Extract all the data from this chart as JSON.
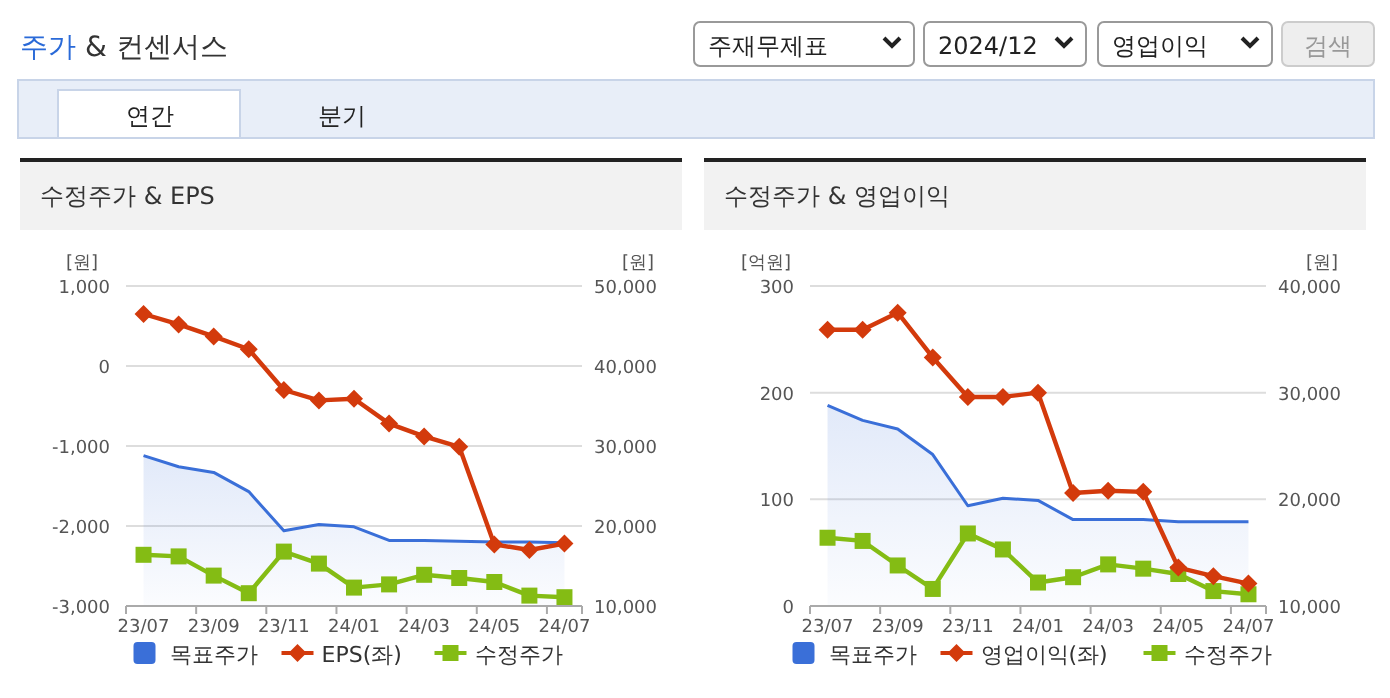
{
  "chart_data": [
    {
      "type": "other",
      "title": "주가 & 컨센서스",
      "annotations": [
        "주재무제표",
        "2024/12",
        "영업이익",
        "검색",
        "연간",
        "분기"
      ]
    },
    {
      "type": "line",
      "title": "수정주가 & EPS",
      "ylabel": "[원]",
      "y2label": "[원]",
      "categories": [
        "23/07",
        null,
        "23/09",
        null,
        "23/11",
        null,
        "24/01",
        null,
        "24/03",
        null,
        "24/05",
        null,
        "24/07"
      ],
      "ylim": [
        -3000,
        1000
      ],
      "yticks": [
        {
          "value": -3000,
          "label": "-3,000"
        },
        {
          "value": -2000,
          "label": "-2,000"
        },
        {
          "value": -1000,
          "label": "-1,000"
        },
        0,
        {
          "value": 1000,
          "label": "1,000"
        }
      ],
      "y2lim": [
        10000,
        50000
      ],
      "y2ticks": [
        {
          "value": 10000,
          "label": "10,000"
        },
        {
          "value": 20000,
          "label": "20,000"
        },
        {
          "value": 30000,
          "label": "30,000"
        },
        {
          "value": 40000,
          "label": "40,000"
        },
        {
          "value": 50000,
          "label": "50,000"
        }
      ],
      "grid": "y",
      "legend": "bottom",
      "series": [
        {
          "name": "목표주가",
          "type": "area",
          "axis": "y2",
          "color": "#3a6fd8",
          "values": [
            28800,
            27400,
            26700,
            24300,
            19400,
            20200,
            19900,
            18200,
            18200,
            18100,
            18000,
            18000,
            17900
          ]
        },
        {
          "name": "EPS(좌)",
          "type": "line",
          "color": "#d33a0c",
          "marker": "diamond",
          "values": [
            650,
            520,
            370,
            210,
            -300,
            -430,
            -410,
            -720,
            -880,
            -1010,
            -2230,
            -2300,
            -2220
          ]
        },
        {
          "name": "수정주가",
          "type": "line",
          "axis": "y2",
          "color": "#84bc14",
          "marker": "square",
          "values": [
            16400,
            16200,
            13800,
            11600,
            16800,
            15300,
            12300,
            12700,
            13900,
            13500,
            13000,
            11300,
            11100
          ]
        }
      ]
    },
    {
      "type": "line",
      "title": "수정주가 & 영업이익",
      "ylabel": "[억원]",
      "y2label": "[원]",
      "categories": [
        "23/07",
        null,
        "23/09",
        null,
        "23/11",
        null,
        "24/01",
        null,
        "24/03",
        null,
        "24/05",
        null,
        "24/07"
      ],
      "ylim": [
        0,
        300
      ],
      "yticks": [
        0,
        100,
        200,
        300
      ],
      "y2lim": [
        10000,
        40000
      ],
      "y2ticks": [
        {
          "value": 10000,
          "label": "10,000"
        },
        {
          "value": 20000,
          "label": "20,000"
        },
        {
          "value": 30000,
          "label": "30,000"
        },
        {
          "value": 40000,
          "label": "40,000"
        }
      ],
      "grid": "y",
      "legend": "bottom",
      "series": [
        {
          "name": "목표주가",
          "type": "area",
          "axis": "y2",
          "color": "#3a6fd8",
          "values": [
            28800,
            27400,
            26600,
            24200,
            19400,
            20100,
            19900,
            18100,
            18100,
            18100,
            17900,
            17900,
            17900
          ]
        },
        {
          "name": "영업이익(좌)",
          "type": "line",
          "color": "#d33a0c",
          "marker": "diamond",
          "values": [
            259,
            259,
            275,
            233,
            196,
            196,
            200,
            106,
            108,
            107,
            36,
            28,
            21
          ]
        },
        {
          "name": "수정주가",
          "type": "line",
          "axis": "y2",
          "color": "#84bc14",
          "marker": "square",
          "values": [
            16400,
            16100,
            13800,
            11600,
            16800,
            15300,
            12200,
            12700,
            13900,
            13500,
            13000,
            11400,
            11100
          ]
        }
      ]
    }
  ]
}
